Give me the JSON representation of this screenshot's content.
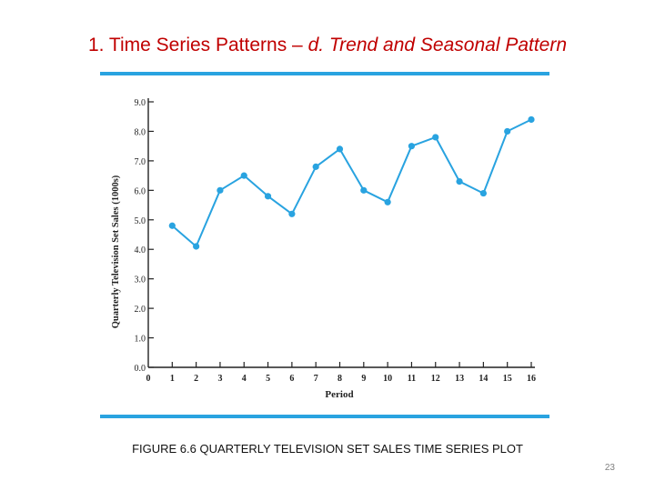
{
  "slide": {
    "title_prefix": "1. Time Series Patterns – ",
    "title_emphasis": "d. Trend and Seasonal Pattern",
    "caption": "FIGURE 6.6 QUARTERLY TELEVISION SET SALES TIME SERIES PLOT",
    "page_number": "23"
  },
  "colors": {
    "title": "#c00000",
    "frame_rule": "#29a3e0",
    "series": "#29a3e0",
    "axis": "#222222"
  },
  "chart_data": {
    "type": "line",
    "title": "",
    "xlabel": "Period",
    "ylabel": "Quarterly Television Set Sales (1000s)",
    "xlim": [
      0,
      16
    ],
    "ylim": [
      0,
      9
    ],
    "x_ticks": [
      "0",
      "1",
      "2",
      "3",
      "4",
      "5",
      "6",
      "7",
      "8",
      "9",
      "10",
      "11",
      "12",
      "13",
      "14",
      "15",
      "16"
    ],
    "y_ticks": [
      "0.0",
      "1.0",
      "2.0",
      "3.0",
      "4.0",
      "5.0",
      "6.0",
      "7.0",
      "8.0",
      "9.0"
    ],
    "grid": false,
    "legend": "none",
    "series": [
      {
        "name": "Quarterly Television Set Sales",
        "x": [
          1,
          2,
          3,
          4,
          5,
          6,
          7,
          8,
          9,
          10,
          11,
          12,
          13,
          14,
          15,
          16
        ],
        "values": [
          4.8,
          4.1,
          6.0,
          6.5,
          5.8,
          5.2,
          6.8,
          7.4,
          6.0,
          5.6,
          7.5,
          7.8,
          6.3,
          5.9,
          8.0,
          8.4
        ]
      }
    ]
  }
}
